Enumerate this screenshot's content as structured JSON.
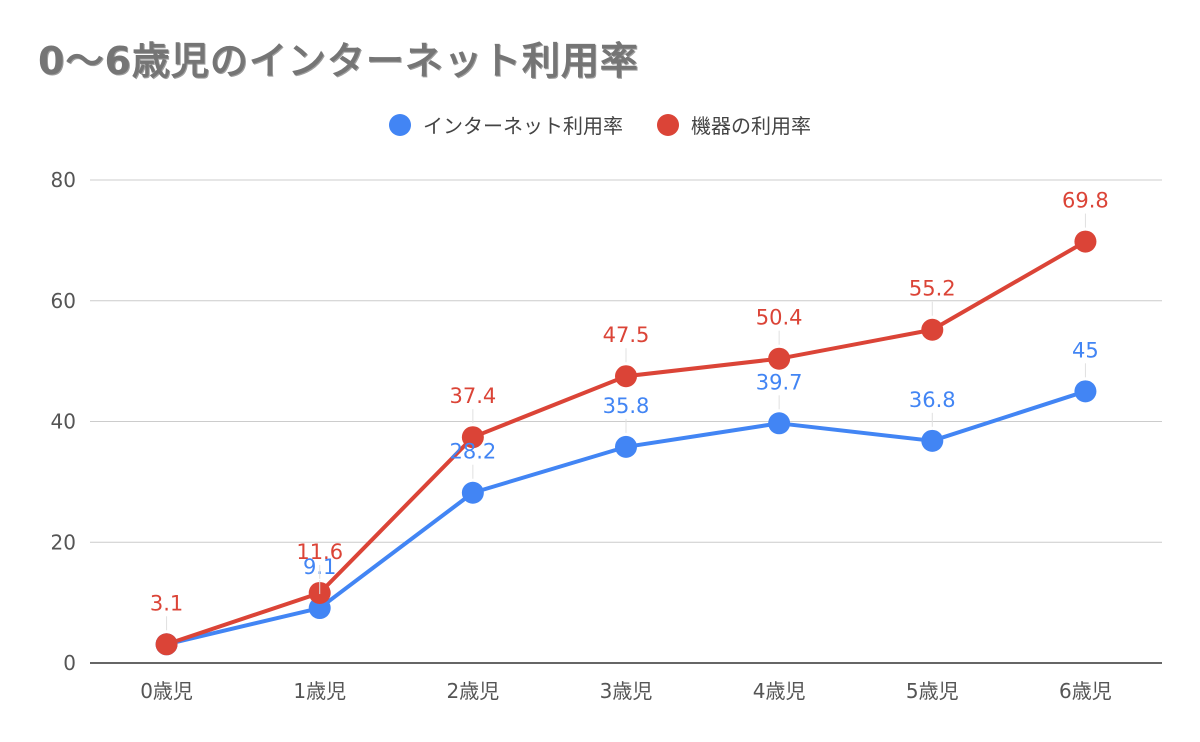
{
  "chart_data": {
    "type": "line",
    "title": "0〜6歳児のインターネット利用率",
    "xlabel": "",
    "ylabel": "",
    "categories": [
      "0歳児",
      "1歳児",
      "2歳児",
      "3歳児",
      "4歳児",
      "5歳児",
      "6歳児"
    ],
    "ylim": [
      0,
      80
    ],
    "yticks": [
      "0",
      "20",
      "40",
      "60",
      "80"
    ],
    "grid": true,
    "legend_position": "top",
    "series": [
      {
        "name": "インターネット利用率",
        "color": "#4285f4",
        "values": [
          3.1,
          9.1,
          28.2,
          35.8,
          39.7,
          36.8,
          45
        ],
        "labels": [
          "",
          "9.1",
          "28.2",
          "35.8",
          "39.7",
          "36.8",
          "45"
        ]
      },
      {
        "name": "機器の利用率",
        "color": "#db4437",
        "values": [
          3.1,
          11.6,
          37.4,
          47.5,
          50.4,
          55.2,
          69.8
        ],
        "labels": [
          "3.1",
          "11.6",
          "37.4",
          "47.5",
          "50.4",
          "55.2",
          "69.8"
        ]
      }
    ]
  }
}
